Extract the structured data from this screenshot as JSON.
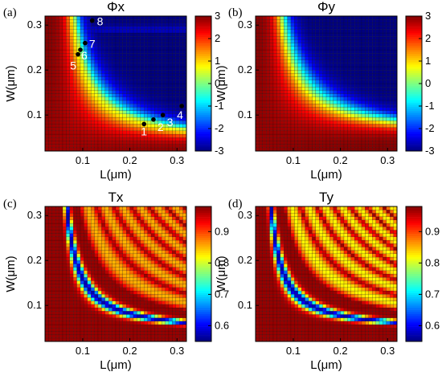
{
  "chart_data": [
    {
      "type": "heatmap",
      "panel": "(a)",
      "title": "Φx",
      "xlabel": "L(μm)",
      "ylabel": "W(μm)",
      "xlim": [
        0.02,
        0.32
      ],
      "ylim": [
        0.02,
        0.32
      ],
      "grid_n": 40,
      "xticks": [
        0.1,
        0.2,
        0.3
      ],
      "yticks": [
        0.1,
        0.2,
        0.3
      ],
      "colorbar": {
        "min": -3,
        "max": 3,
        "ticks": [
          3,
          2,
          1,
          0,
          -1,
          -2,
          -3
        ]
      },
      "colormap": "jet",
      "field": "phase",
      "annotations": [
        {
          "label": "1",
          "L": 0.23,
          "W": 0.08
        },
        {
          "label": "2",
          "L": 0.25,
          "W": 0.09
        },
        {
          "label": "3",
          "L": 0.27,
          "W": 0.1
        },
        {
          "label": "4",
          "L": 0.31,
          "W": 0.12
        },
        {
          "label": "5",
          "L": 0.09,
          "W": 0.235
        },
        {
          "label": "6",
          "L": 0.095,
          "W": 0.245
        },
        {
          "label": "7",
          "L": 0.105,
          "W": 0.26
        },
        {
          "label": "8",
          "L": 0.12,
          "W": 0.31
        }
      ]
    },
    {
      "type": "heatmap",
      "panel": "(b)",
      "title": "Φy",
      "xlabel": "L(μm)",
      "ylabel": "W(μm)",
      "xlim": [
        0.02,
        0.32
      ],
      "ylim": [
        0.02,
        0.32
      ],
      "grid_n": 40,
      "xticks": [
        0.1,
        0.2,
        0.3
      ],
      "yticks": [
        0.1,
        0.2,
        0.3
      ],
      "colorbar": {
        "min": -3,
        "max": 3,
        "ticks": [
          3,
          2,
          1,
          0,
          -1,
          -2,
          -3
        ]
      },
      "colormap": "jet",
      "field": "phase",
      "annotations": []
    },
    {
      "type": "heatmap",
      "panel": "(c)",
      "title": "Tx",
      "xlabel": "L(μm)",
      "ylabel": "W(μm)",
      "xlim": [
        0.02,
        0.32
      ],
      "ylim": [
        0.02,
        0.32
      ],
      "grid_n": 40,
      "xticks": [
        0.1,
        0.2,
        0.3
      ],
      "yticks": [
        0.1,
        0.2,
        0.3
      ],
      "colorbar": {
        "min": 0.55,
        "max": 0.98,
        "ticks": [
          0.9,
          0.8,
          0.7,
          0.6
        ]
      },
      "colormap": "jet",
      "field": "transmission",
      "annotations": []
    },
    {
      "type": "heatmap",
      "panel": "(d)",
      "title": "Ty",
      "xlabel": "L(μm)",
      "ylabel": "W(μm)",
      "xlim": [
        0.02,
        0.32
      ],
      "ylim": [
        0.02,
        0.32
      ],
      "grid_n": 40,
      "xticks": [
        0.1,
        0.2,
        0.3
      ],
      "yticks": [
        0.1,
        0.2,
        0.3
      ],
      "colorbar": {
        "min": 0.55,
        "max": 0.98,
        "ticks": [
          0.9,
          0.8,
          0.7,
          0.6
        ]
      },
      "colormap": "jet",
      "field": "transmission",
      "annotations": []
    }
  ]
}
